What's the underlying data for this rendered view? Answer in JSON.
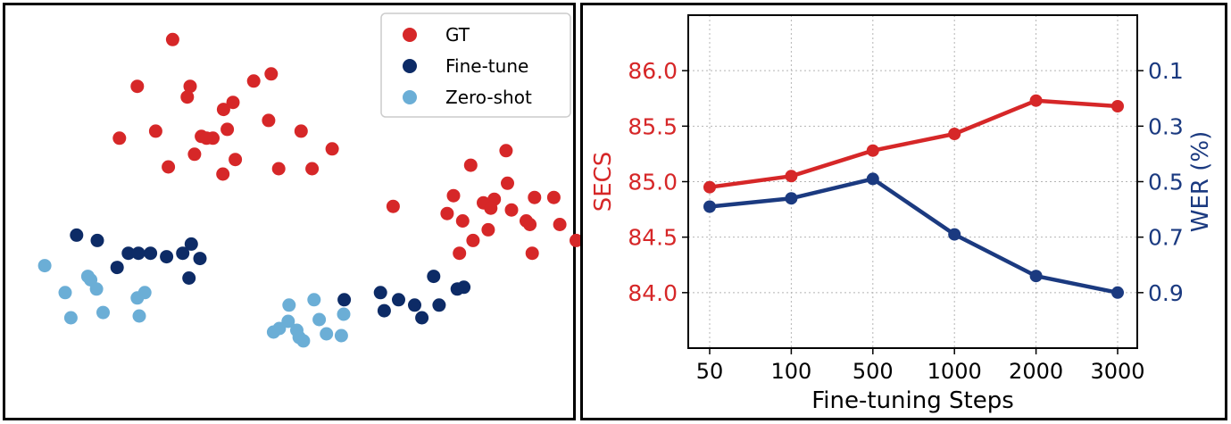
{
  "colors": {
    "gt": "#d62728",
    "finetune": "#0d2b66",
    "zeroshot": "#6baed6",
    "secs": "#d62728",
    "wer": "#1b3a80",
    "grid": "#b5b5b5",
    "axis": "#000000"
  },
  "chart_data": [
    {
      "type": "scatter",
      "title": "",
      "legend_position": "top-right",
      "series": [
        {
          "name": "GT",
          "color_key": "gt",
          "points": [
            [
              4.95,
              9.63
            ],
            [
              3.72,
              8.05
            ],
            [
              5.56,
              8.05
            ],
            [
              7.77,
              8.23
            ],
            [
              8.38,
              8.47
            ],
            [
              5.46,
              7.69
            ],
            [
              7.05,
              7.51
            ],
            [
              6.72,
              7.27
            ],
            [
              8.29,
              6.9
            ],
            [
              3.1,
              6.3
            ],
            [
              4.36,
              6.54
            ],
            [
              5.95,
              6.36
            ],
            [
              6.35,
              6.3
            ],
            [
              6.13,
              6.3
            ],
            [
              6.85,
              6.6
            ],
            [
              9.42,
              6.54
            ],
            [
              10.5,
              5.94
            ],
            [
              5.71,
              5.76
            ],
            [
              7.13,
              5.58
            ],
            [
              4.8,
              5.33
            ],
            [
              6.7,
              5.09
            ],
            [
              8.64,
              5.27
            ],
            [
              9.8,
              5.27
            ],
            [
              16.55,
              5.88
            ],
            [
              15.32,
              5.39
            ],
            [
              16.6,
              4.78
            ],
            [
              14.72,
              4.36
            ],
            [
              16.14,
              4.24
            ],
            [
              17.54,
              4.3
            ],
            [
              18.21,
              4.3
            ],
            [
              12.62,
              4.0
            ],
            [
              15.76,
              4.12
            ],
            [
              16.02,
              3.94
            ],
            [
              14.5,
              3.76
            ],
            [
              16.74,
              3.88
            ],
            [
              15.04,
              3.51
            ],
            [
              17.25,
              3.51
            ],
            [
              17.38,
              3.39
            ],
            [
              18.42,
              3.39
            ],
            [
              15.93,
              3.21
            ],
            [
              15.4,
              2.85
            ],
            [
              18.99,
              2.85
            ],
            [
              14.93,
              2.42
            ],
            [
              17.46,
              2.42
            ]
          ]
        },
        {
          "name": "Fine-tune",
          "color_key": "finetune",
          "points": [
            [
              1.61,
              3.03
            ],
            [
              2.33,
              2.85
            ],
            [
              3.41,
              2.42
            ],
            [
              3.76,
              2.42
            ],
            [
              4.18,
              2.42
            ],
            [
              4.74,
              2.3
            ],
            [
              5.3,
              2.42
            ],
            [
              5.6,
              2.73
            ],
            [
              5.9,
              2.24
            ],
            [
              3.02,
              1.94
            ],
            [
              5.52,
              1.58
            ],
            [
              14.03,
              1.64
            ],
            [
              15.08,
              1.27
            ],
            [
              14.85,
              1.21
            ],
            [
              12.18,
              1.09
            ],
            [
              12.81,
              0.85
            ],
            [
              10.92,
              0.85
            ],
            [
              13.37,
              0.67
            ],
            [
              14.22,
              0.67
            ],
            [
              12.31,
              0.48
            ],
            [
              13.62,
              0.24
            ]
          ]
        },
        {
          "name": "Zero-shot",
          "color_key": "zeroshot",
          "points": [
            [
              0.5,
              2.0
            ],
            [
              2.0,
              1.64
            ],
            [
              2.1,
              1.52
            ],
            [
              2.3,
              1.21
            ],
            [
              1.21,
              1.09
            ],
            [
              3.98,
              1.09
            ],
            [
              3.72,
              0.91
            ],
            [
              9.87,
              0.85
            ],
            [
              9.0,
              0.67
            ],
            [
              2.53,
              0.42
            ],
            [
              3.79,
              0.3
            ],
            [
              1.41,
              0.24
            ],
            [
              10.9,
              0.36
            ],
            [
              10.05,
              0.18
            ],
            [
              8.97,
              0.12
            ],
            [
              8.66,
              -0.12
            ],
            [
              8.46,
              -0.24
            ],
            [
              9.27,
              -0.18
            ],
            [
              10.3,
              -0.3
            ],
            [
              10.82,
              -0.36
            ],
            [
              9.35,
              -0.42
            ],
            [
              9.5,
              -0.54
            ]
          ]
        }
      ]
    },
    {
      "type": "line",
      "title": "",
      "xlabel": "Fine-tuning Steps",
      "ylabel": "SECS",
      "ylabel_right": "WER (%)",
      "categories": [
        "50",
        "100",
        "500",
        "1000",
        "2000",
        "3000"
      ],
      "ylim": [
        83.5,
        86.5
      ],
      "ylim_right": [
        1.1,
        -0.1
      ],
      "yticks": [
        "84.0",
        "84.5",
        "85.0",
        "85.5",
        "86.0"
      ],
      "yticks_right": [
        "0.1",
        "0.3",
        "0.5",
        "0.7",
        "0.9"
      ],
      "grid": true,
      "series": [
        {
          "name": "SECS",
          "axis": "left",
          "color_key": "secs",
          "values": [
            84.95,
            85.05,
            85.28,
            85.43,
            85.73,
            85.68
          ]
        },
        {
          "name": "WER (%)",
          "axis": "right",
          "color_key": "wer",
          "values": [
            0.59,
            0.56,
            0.49,
            0.69,
            0.84,
            0.9
          ]
        }
      ]
    }
  ]
}
